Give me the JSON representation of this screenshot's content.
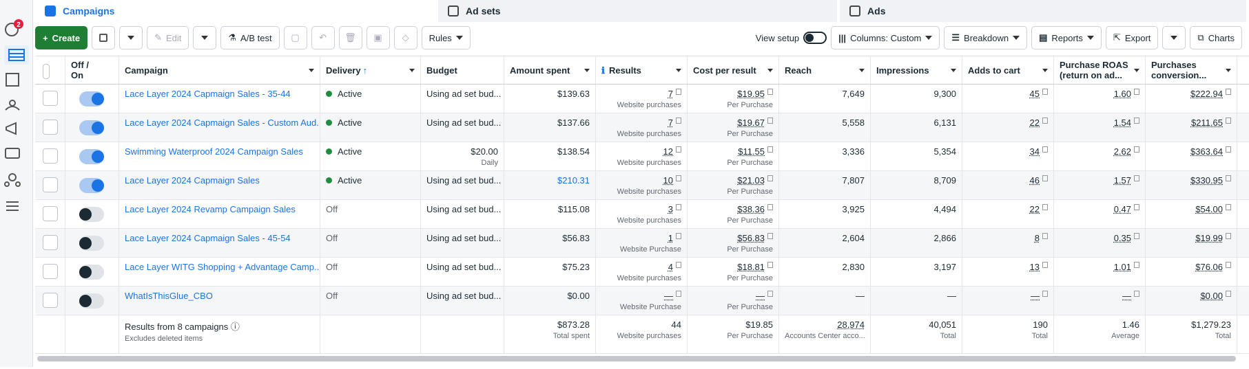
{
  "notification_count": 2,
  "tabs": [
    "Campaigns",
    "Ad sets",
    "Ads"
  ],
  "toolbar": {
    "create": "Create",
    "edit": "Edit",
    "ab_test": "A/B test",
    "rules": "Rules",
    "view_setup": "View setup",
    "columns": "Columns: Custom",
    "breakdown": "Breakdown",
    "reports": "Reports",
    "export": "Export",
    "charts": "Charts"
  },
  "table": {
    "columns": [
      "Off / On",
      "Campaign",
      "Delivery",
      "Budget",
      "Amount spent",
      "Results",
      "Cost per result",
      "Reach",
      "Impressions",
      "Adds to cart",
      "Purchase ROAS (return on ad...",
      "Purchases conversion..."
    ],
    "rows": [
      {
        "on": true,
        "campaign": "Lace Layer 2024 Capmaign Sales - 35-44",
        "delivery": "Active",
        "budget": "Using ad set bud...",
        "amount_spent": "$139.63",
        "results": "7",
        "results_label": "Website purchases",
        "cost_per_result": "$19.95",
        "cost_label": "Per Purchase",
        "reach": "7,649",
        "impressions": "9,300",
        "adds_to_cart": "45",
        "roas": "1.60",
        "conversion": "$222.94"
      },
      {
        "on": true,
        "campaign": "Lace Layer 2024 Capmaign Sales - Custom Aud...",
        "delivery": "Active",
        "budget": "Using ad set bud...",
        "amount_spent": "$137.66",
        "results": "7",
        "results_label": "Website purchases",
        "cost_per_result": "$19.67",
        "cost_label": "Per Purchase",
        "reach": "5,558",
        "impressions": "6,131",
        "adds_to_cart": "22",
        "roas": "1.54",
        "conversion": "$211.65"
      },
      {
        "on": true,
        "campaign": "Swimming Waterproof 2024 Campaign Sales",
        "delivery": "Active",
        "budget": "$20.00",
        "budget_note": "Daily",
        "amount_spent": "$138.54",
        "results": "12",
        "results_label": "Website purchases",
        "cost_per_result": "$11.55",
        "cost_label": "Per Purchase",
        "reach": "3,336",
        "impressions": "5,354",
        "adds_to_cart": "34",
        "roas": "2.62",
        "conversion": "$363.64"
      },
      {
        "on": true,
        "campaign": "Lace Layer 2024 Capmaign Sales",
        "delivery": "Active",
        "budget": "Using ad set bud...",
        "amount_spent": "$210.31",
        "amount_color": "#1b74e4",
        "results": "10",
        "results_label": "Website purchases",
        "cost_per_result": "$21.03",
        "cost_label": "Per Purchase",
        "reach": "7,807",
        "impressions": "8,709",
        "adds_to_cart": "46",
        "roas": "1.57",
        "conversion": "$330.95"
      },
      {
        "on": false,
        "campaign": "Lace Layer 2024 Revamp Campaign Sales",
        "delivery": "Off",
        "budget": "Using ad set bud...",
        "amount_spent": "$115.08",
        "results": "3",
        "results_label": "Website purchases",
        "cost_per_result": "$38.36",
        "cost_label": "Per Purchase",
        "reach": "3,925",
        "impressions": "4,494",
        "adds_to_cart": "22",
        "roas": "0.47",
        "conversion": "$54.00"
      },
      {
        "on": false,
        "campaign": "Lace Layer 2024 Capmaign Sales - 45-54",
        "delivery": "Off",
        "budget": "Using ad set bud...",
        "amount_spent": "$56.83",
        "results": "1",
        "results_label": "Website Purchase",
        "cost_per_result": "$56.83",
        "cost_label": "Per Purchase",
        "reach": "2,604",
        "impressions": "2,866",
        "adds_to_cart": "8",
        "roas": "0.35",
        "conversion": "$19.99"
      },
      {
        "on": false,
        "campaign": "Lace Layer WITG Shopping + Advantage Camp...",
        "delivery": "Off",
        "budget": "Using ad set bud...",
        "amount_spent": "$75.23",
        "results": "4",
        "results_label": "Website purchases",
        "cost_per_result": "$18.81",
        "cost_label": "Per Purchase",
        "reach": "2,830",
        "impressions": "3,197",
        "adds_to_cart": "13",
        "roas": "1.01",
        "conversion": "$76.06"
      },
      {
        "on": false,
        "campaign": "WhatIsThisGlue_CBO",
        "delivery": "Off",
        "budget": "Using ad set bud...",
        "amount_spent": "$0.00",
        "results": "—",
        "results_label": "Website Purchase",
        "cost_per_result": "—",
        "cost_label": "Per Purchase",
        "reach": "—",
        "impressions": "—",
        "adds_to_cart": "—",
        "roas": "—",
        "conversion": "$0.00"
      }
    ],
    "footer": {
      "title": "Results from 8 campaigns",
      "subtitle": "Excludes deleted items",
      "amount_spent": "$873.28",
      "amount_spent_label": "Total spent",
      "results": "44",
      "results_label": "Website purchases",
      "cost_per_result": "$19.85",
      "cost_label": "Per Purchase",
      "reach": "28,974",
      "reach_label": "Accounts Center acco...",
      "impressions": "40,051",
      "impressions_label": "Total",
      "adds_to_cart": "190",
      "adds_label": "Total",
      "roas": "1.46",
      "roas_label": "Average",
      "conversion": "$1,279.23",
      "conversion_label": "Total"
    }
  }
}
